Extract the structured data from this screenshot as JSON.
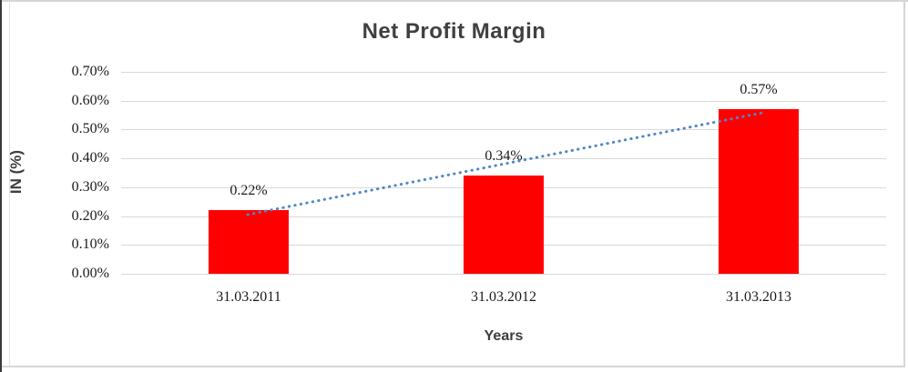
{
  "chart_data": {
    "type": "bar",
    "title": "Net Profit Margin",
    "xlabel": "Years",
    "ylabel": "IN (%)",
    "units": "%",
    "categories": [
      "31.03.2011",
      "31.03.2012",
      "31.03.2013"
    ],
    "values": [
      0.22,
      0.34,
      0.57
    ],
    "data_labels": [
      "0.22%",
      "0.34%",
      "0.57%"
    ],
    "y_ticks": [
      "0.70%",
      "0.60%",
      "0.50%",
      "0.40%",
      "0.30%",
      "0.20%",
      "0.10%",
      "0.00%"
    ],
    "ylim": [
      0,
      0.7
    ],
    "grid": true,
    "legend": "none",
    "bar_color": "#FF0000",
    "gridline_color": "#D9D9D9",
    "title_color": "#404040",
    "trendline": {
      "type": "linear",
      "style": "dotted",
      "color": "#4E87C6",
      "start_value": 0.205,
      "end_value": 0.558
    }
  }
}
